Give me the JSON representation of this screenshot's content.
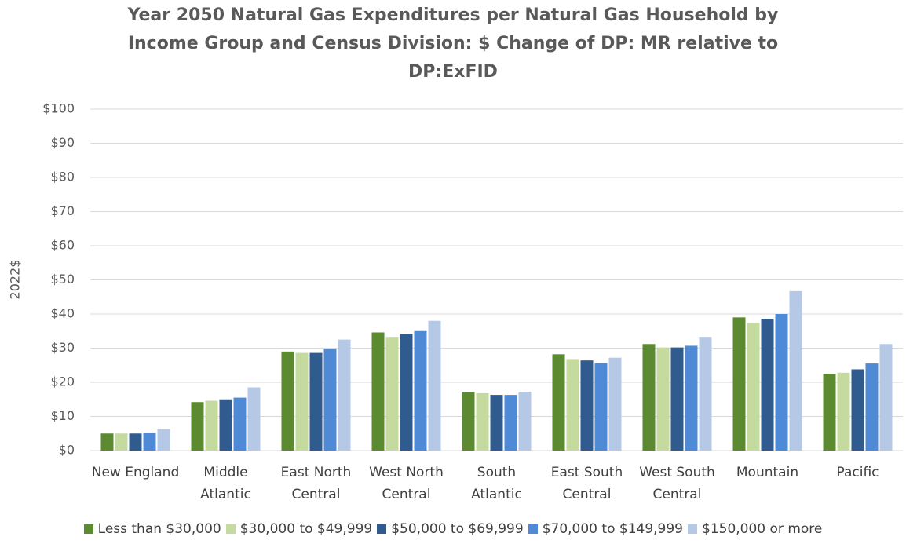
{
  "chart_data": {
    "type": "bar",
    "title": "Year 2050 Natural Gas Expenditures per Natural Gas Household by Income Group and Census Division: $ Change of DP: MR relative to DP:ExFID",
    "y_label": "2022$",
    "categories": [
      "New England",
      "Middle Atlantic",
      "East North Central",
      "West North Central",
      "South Atlantic",
      "East South Central",
      "West South Central",
      "Mountain",
      "Pacific"
    ],
    "series": [
      {
        "name": "Less than $30,000",
        "color": "#5b8a30",
        "values": [
          5,
          14.2,
          29,
          34.6,
          17.2,
          28.2,
          31.2,
          39,
          22.5
        ]
      },
      {
        "name": "$30,000 to $49,999",
        "color": "#c4da9e",
        "values": [
          5,
          14.6,
          28.6,
          33.3,
          16.8,
          26.8,
          30.2,
          37.5,
          22.8
        ]
      },
      {
        "name": "$50,000 to $69,999",
        "color": "#2f5b8e",
        "values": [
          5,
          15,
          28.6,
          34.2,
          16.3,
          26.4,
          30.2,
          38.6,
          23.8
        ]
      },
      {
        "name": "$70,000 to $149,999",
        "color": "#4f8ad6",
        "values": [
          5.3,
          15.5,
          29.8,
          35,
          16.3,
          25.6,
          30.7,
          40,
          25.5
        ]
      },
      {
        "name": "$150,000 or more",
        "color": "#b5c9e7",
        "values": [
          6.3,
          18.5,
          32.5,
          38,
          17.2,
          27.2,
          33.3,
          46.7,
          31.2
        ]
      }
    ],
    "ylim": [
      0,
      100
    ],
    "yticks": [
      {
        "value": 0,
        "label": "$0"
      },
      {
        "value": 10,
        "label": "$10"
      },
      {
        "value": 20,
        "label": "$20"
      },
      {
        "value": 30,
        "label": "$30"
      },
      {
        "value": 40,
        "label": "$40"
      },
      {
        "value": 50,
        "label": "$50"
      },
      {
        "value": 60,
        "label": "$60"
      },
      {
        "value": 70,
        "label": "$70"
      },
      {
        "value": 80,
        "label": "$80"
      },
      {
        "value": 90,
        "label": "$90"
      },
      {
        "value": 100,
        "label": "$100"
      }
    ],
    "grid": true,
    "legend": "bottom"
  }
}
